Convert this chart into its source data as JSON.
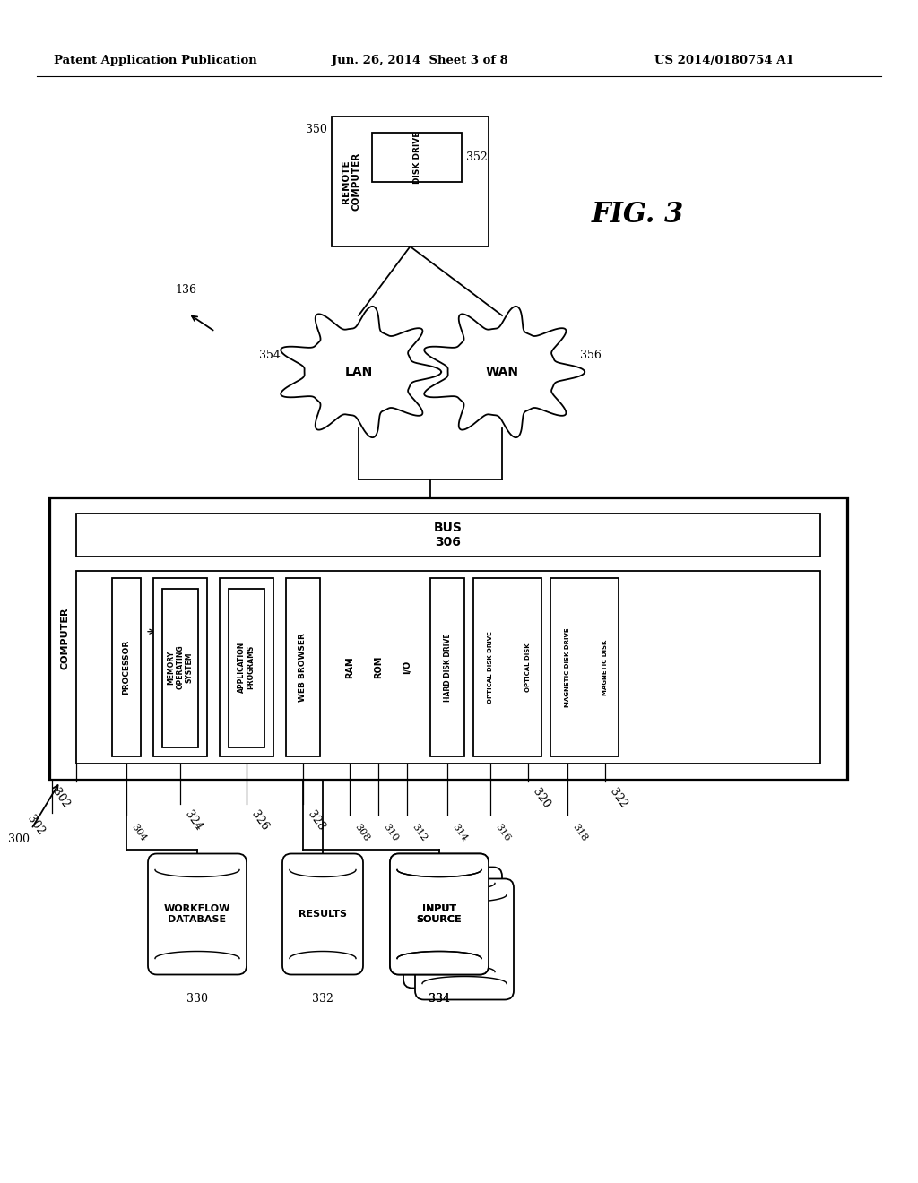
{
  "header_left": "Patent Application Publication",
  "header_mid": "Jun. 26, 2014  Sheet 3 of 8",
  "header_right": "US 2014/0180754 A1",
  "fig_label": "FIG. 3",
  "bg_color": "#ffffff",
  "line_color": "#000000",
  "remote_computer_label": "REMOTE\nCOMPUTER",
  "disk_drive_label": "DISK DRIVE",
  "remote_num": "350",
  "disk_drive_num": "352",
  "arrow_label": "136",
  "lan_label": "LAN",
  "wan_label": "WAN",
  "lan_num": "354",
  "wan_num": "356",
  "bus_label": "BUS",
  "bus_num": "306",
  "computer_label": "COMPUTER",
  "processor_label": "PROCESSOR",
  "processor_num": "304",
  "memory_label": "MEMORY\nOPERATING\nSYSTEM",
  "memory_num": "324",
  "app_label": "APPLICATION\nPROGRAMS",
  "app_num": "326",
  "web_label": "WEB BROWSER",
  "web_num": "328",
  "ram_label": "RAM",
  "ram_num": "308",
  "rom_label": "ROM",
  "rom_num": "310",
  "io_label": "I/O",
  "io_num": "312",
  "hdd_label": "HARD DISK DRIVE",
  "hdd_num": "314",
  "odd_label": "OPTICAL DISK DRIVE",
  "odd_num": "316",
  "optical_label": "OPTICAL DISK",
  "optical_num": "320",
  "mdd_label": "MAGNETIC DISK DRIVE",
  "mdd_num": "318",
  "magnetic_label": "MAGNETIC DISK",
  "magnetic_num": "322",
  "comp_num": "302",
  "outer_comp_num": "300",
  "db_label": "WORKFLOW\nDATABASE",
  "db_num": "330",
  "results_label": "RESULTS",
  "results_num": "332",
  "input_label": "INPUT\nSOURCE",
  "input_num": "334"
}
